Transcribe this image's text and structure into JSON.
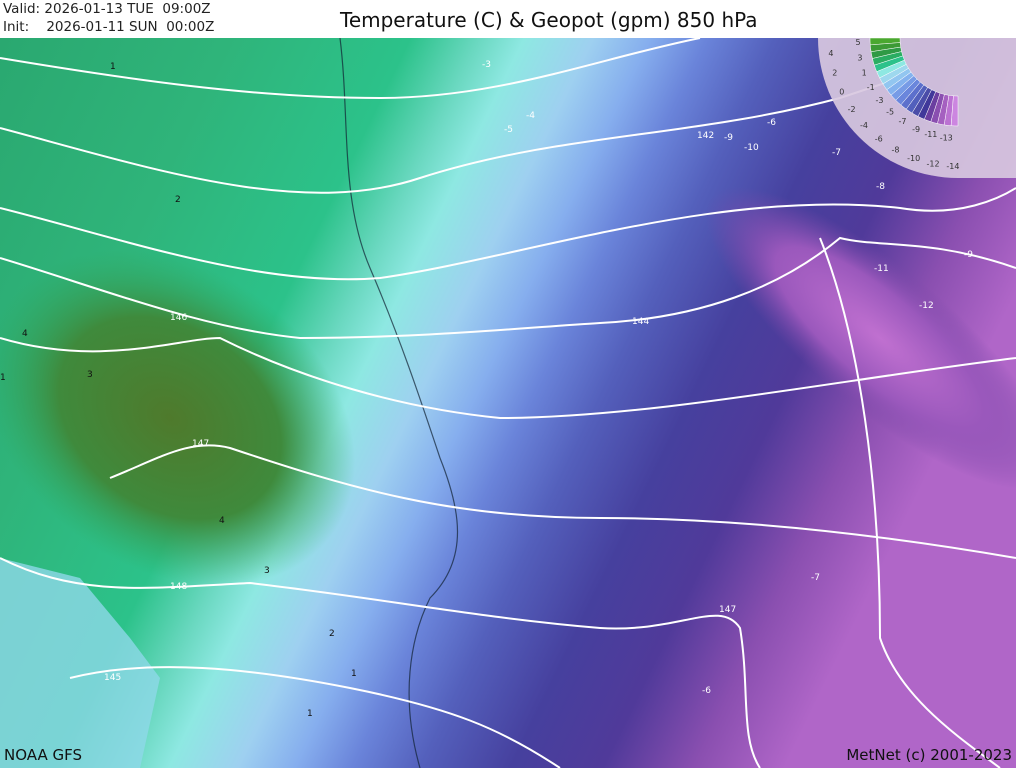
{
  "header": {
    "valid_label": "Valid:",
    "valid_value": "2026-01-13 TUE  09:00Z",
    "init_label": "Init:",
    "init_value": "2026-01-11 SUN  00:00Z",
    "title": "Temperature (C) & Geopot (gpm) 850 hPa"
  },
  "footer": {
    "source": "NOAA GFS",
    "copyright": "MetNet (c) 2001-2023"
  },
  "legend": {
    "labels": [
      "5",
      "4",
      "3",
      "2",
      "1",
      "0",
      "-1",
      "-2",
      "-3",
      "-4",
      "-5",
      "-6",
      "-7",
      "-8",
      "-9",
      "-10",
      "-11",
      "-12",
      "-13",
      "-14"
    ],
    "colors": [
      "#4aa82f",
      "#3c9a35",
      "#2f9a45",
      "#2aad62",
      "#2cc28a",
      "#8ee8e2",
      "#9ed8ee",
      "#92c6f0",
      "#84b2ee",
      "#779be6",
      "#6a86dc",
      "#5c70cc",
      "#5260bc",
      "#4a4ca8",
      "#40389a",
      "#6b3fa0",
      "#8a4fb0",
      "#a560c0",
      "#bb72d2",
      "#cc86e0"
    ]
  },
  "geopotential_labels": [
    "142",
    "144",
    "146",
    "147",
    "148",
    "147",
    "145"
  ],
  "temperature_labels": [
    "1",
    "2",
    "4",
    "3",
    "4",
    "3",
    "2",
    "1",
    "1",
    "1",
    "-3",
    "-4",
    "-5",
    "-6",
    "-9",
    "-10",
    "-7",
    "-8",
    "-9",
    "-11",
    "-12",
    "-7",
    "-6"
  ],
  "colors": {
    "warm_green": "#2cc28a",
    "dark_green": "#4a7a2a",
    "cyan": "#8ee8e2",
    "blue": "#7a9ae8",
    "purple": "#4a3a98",
    "violet": "#a060c0"
  }
}
